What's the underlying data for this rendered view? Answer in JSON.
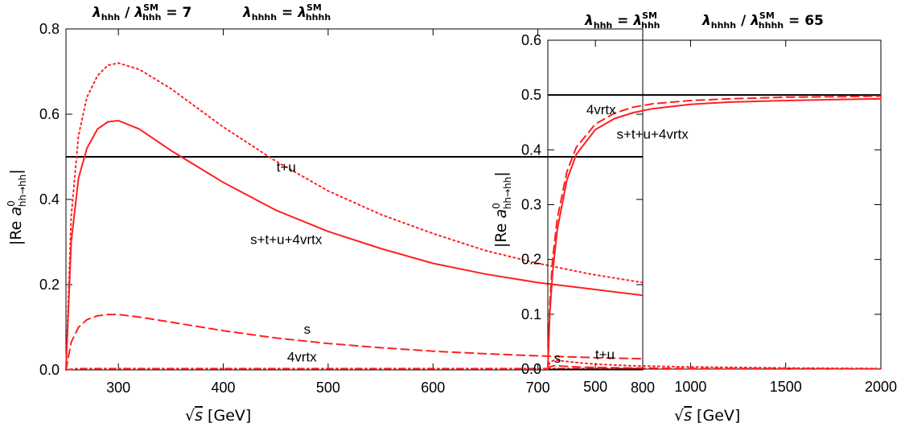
{
  "figure": {
    "panels": [
      {
        "title_left": {
          "sym": "λ",
          "sub": "hhh",
          "sep": " / ",
          "sym2": "λ",
          "sup2": "SM",
          "sub2": "hhh",
          "rel": " = 7"
        },
        "title_right": {
          "sym": "λ",
          "sub": "hhhh",
          "rel": " = ",
          "sym2": "λ",
          "sup2": "SM",
          "sub2": "hhhh"
        },
        "xlabel_rad": "√",
        "xlabel_var": "s",
        "xlabel_unit": " [GeV]",
        "ylabel_pre": "|Re ",
        "ylabel_var": "a",
        "ylabel_sup": "0",
        "ylabel_sub": "hh→hh",
        "ylabel_post": "|",
        "annotations": [
          {
            "text": "t+u",
            "x": 460,
            "y": 0.465
          },
          {
            "text": "s+t+u+4vrtx",
            "x": 460,
            "y": 0.295
          },
          {
            "text": "s",
            "x": 480,
            "y": 0.085
          },
          {
            "text": "4vrtx",
            "x": 475,
            "y": 0.02
          }
        ]
      },
      {
        "title_left": {
          "sym": "λ",
          "sub": "hhh",
          "rel": " = ",
          "sym2": "λ",
          "sup2": "SM",
          "sub2": "hhh"
        },
        "title_right": {
          "sym": "λ",
          "sub": "hhhh",
          "sep": " / ",
          "sym2": "λ",
          "sup2": "SM",
          "sub2": "hhhh",
          "rel": " = 65"
        },
        "xlabel_rad": "√",
        "xlabel_var": "s",
        "xlabel_unit": " [GeV]",
        "ylabel_pre": "|Re ",
        "ylabel_var": "a",
        "ylabel_sup": "0",
        "ylabel_sub": "hh→hh",
        "ylabel_post": "|",
        "annotations": [
          {
            "text": "4vrtx",
            "x": 530,
            "y": 0.465
          },
          {
            "text": "s+t+u+4vrtx",
            "x": 800,
            "y": 0.42
          },
          {
            "text": "s",
            "x": 300,
            "y": 0.012
          },
          {
            "text": "t+u",
            "x": 550,
            "y": 0.018
          }
        ]
      }
    ]
  },
  "colors": {
    "red": "#ff2020",
    "black": "#000000",
    "frame": "#000000"
  },
  "chart_data": [
    {
      "type": "line",
      "xlim": [
        250,
        800
      ],
      "ylim": [
        0,
        0.8
      ],
      "xticks": [
        300,
        400,
        500,
        600,
        700,
        800
      ],
      "yticks": [
        0.0,
        0.2,
        0.4,
        0.6,
        0.8
      ],
      "xtick_labels": [
        "300",
        "400",
        "500",
        "600",
        "700",
        "800"
      ],
      "ytick_labels": [
        "0.0",
        "0.2",
        "0.4",
        "0.6",
        "0.8"
      ],
      "grid": false,
      "reference_line": {
        "y": 0.5,
        "color": "#000000"
      },
      "series": [
        {
          "label": "t+u",
          "style": "dotted",
          "color": "#ff2020",
          "x": [
            250,
            255,
            262,
            270,
            280,
            290,
            300,
            320,
            350,
            400,
            450,
            500,
            550,
            600,
            650,
            700,
            750,
            800
          ],
          "y": [
            0,
            0.36,
            0.55,
            0.64,
            0.69,
            0.715,
            0.72,
            0.705,
            0.66,
            0.57,
            0.49,
            0.42,
            0.365,
            0.32,
            0.28,
            0.25,
            0.225,
            0.205
          ]
        },
        {
          "label": "s+t+u+4vrtx",
          "style": "solid",
          "color": "#ff2020",
          "x": [
            250,
            255,
            262,
            270,
            280,
            290,
            300,
            320,
            350,
            400,
            450,
            500,
            550,
            600,
            650,
            700,
            750,
            800
          ],
          "y": [
            0,
            0.3,
            0.45,
            0.52,
            0.565,
            0.582,
            0.585,
            0.565,
            0.515,
            0.44,
            0.375,
            0.325,
            0.285,
            0.25,
            0.225,
            0.205,
            0.19,
            0.175
          ]
        },
        {
          "label": "s",
          "style": "dashed",
          "color": "#ff2020",
          "x": [
            250,
            255,
            262,
            270,
            280,
            290,
            300,
            320,
            350,
            400,
            450,
            500,
            550,
            600,
            650,
            700,
            750,
            800
          ],
          "y": [
            0,
            0.065,
            0.1,
            0.118,
            0.127,
            0.13,
            0.13,
            0.124,
            0.112,
            0.092,
            0.075,
            0.062,
            0.052,
            0.044,
            0.038,
            0.033,
            0.029,
            0.026
          ]
        },
        {
          "label": "4vrtx",
          "style": "dashdot",
          "color": "#ff2020",
          "x": [
            250,
            260,
            300,
            400,
            500,
            600,
            700,
            800
          ],
          "y": [
            0.0,
            0.003,
            0.003,
            0.003,
            0.003,
            0.003,
            0.003,
            0.003
          ]
        }
      ]
    },
    {
      "type": "line",
      "xlim": [
        250,
        2000
      ],
      "ylim": [
        0,
        0.6
      ],
      "xticks": [
        500,
        1000,
        1500,
        2000
      ],
      "yticks": [
        0.0,
        0.1,
        0.2,
        0.3,
        0.4,
        0.5,
        0.6
      ],
      "xtick_labels": [
        "500",
        "1000",
        "1500",
        "2000"
      ],
      "ytick_labels": [
        "0.0",
        "0.1",
        "0.2",
        "0.3",
        "0.4",
        "0.5",
        "0.6"
      ],
      "grid": false,
      "reference_line": {
        "y": 0.5,
        "color": "#000000"
      },
      "series": [
        {
          "label": "4vrtx",
          "style": "dashed",
          "color": "#ff2020",
          "x": [
            250,
            260,
            275,
            300,
            350,
            400,
            500,
            600,
            700,
            800,
            1000,
            1200,
            1500,
            1800,
            2000
          ],
          "y": [
            0,
            0.12,
            0.2,
            0.275,
            0.36,
            0.405,
            0.447,
            0.467,
            0.478,
            0.484,
            0.49,
            0.493,
            0.496,
            0.497,
            0.498
          ]
        },
        {
          "label": "s+t+u+4vrtx",
          "style": "solid",
          "color": "#ff2020",
          "x": [
            250,
            260,
            275,
            300,
            350,
            400,
            500,
            600,
            700,
            800,
            1000,
            1200,
            1500,
            1800,
            2000
          ],
          "y": [
            0,
            0.1,
            0.175,
            0.255,
            0.345,
            0.392,
            0.437,
            0.457,
            0.468,
            0.475,
            0.483,
            0.487,
            0.49,
            0.492,
            0.493
          ]
        },
        {
          "label": "s",
          "style": "dashed",
          "color": "#ff2020",
          "x": [
            250,
            260,
            280,
            300,
            350,
            400,
            500,
            700,
            1000,
            1500,
            2000
          ],
          "y": [
            0,
            0.004,
            0.006,
            0.006,
            0.005,
            0.004,
            0.003,
            0.002,
            0.001,
            0.001,
            0.0005
          ]
        },
        {
          "label": "t+u",
          "style": "dotted",
          "color": "#ff2020",
          "x": [
            250,
            260,
            280,
            300,
            350,
            400,
            500,
            700,
            1000,
            1500,
            2000
          ],
          "y": [
            0,
            0.012,
            0.016,
            0.016,
            0.014,
            0.012,
            0.009,
            0.006,
            0.004,
            0.002,
            0.001
          ]
        }
      ]
    }
  ]
}
